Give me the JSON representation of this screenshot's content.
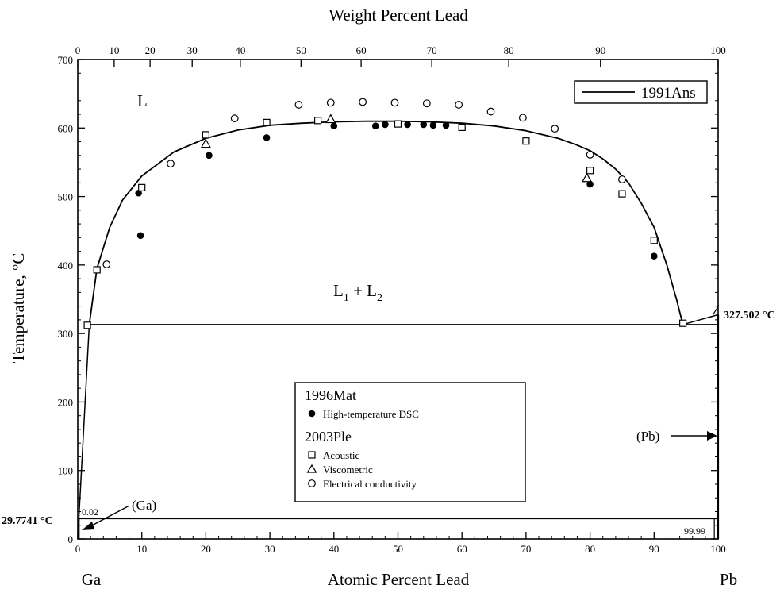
{
  "chart_data": {
    "type": "scatter",
    "title": "",
    "xlabel": "Atomic Percent Lead",
    "x2label": "Weight Percent Lead",
    "ylabel": "Temperature, °C",
    "xlim": [
      0,
      100
    ],
    "ylim": [
      0,
      700
    ],
    "x_ticks": [
      "0",
      "10",
      "20",
      "30",
      "40",
      "50",
      "60",
      "70",
      "80",
      "90",
      "100"
    ],
    "x2_ticks": [
      "0",
      "10",
      "20",
      "30",
      "40",
      "50",
      "60",
      "70",
      "80",
      "90",
      "100"
    ],
    "y_ticks": [
      "0",
      "100",
      "200",
      "300",
      "400",
      "500",
      "600",
      "700"
    ],
    "x2_tick_positions_at": [
      0,
      5.69,
      11.29,
      17.87,
      25.39,
      34.86,
      44.25,
      55.28,
      67.3,
      81.63,
      100
    ],
    "x_ends": {
      "left": "Ga",
      "right": "Pb"
    },
    "grid": false,
    "legend_position": "top-right",
    "annotations": {
      "L": "L",
      "L1L2_main": "L",
      "L1L2_sub1": "1",
      "L1L2_plus": " + L",
      "L1L2_sub2": "2",
      "monotectic_temp": "327.502 °C",
      "eutectic_temp": "29.7741 °C",
      "Ga_phase": "(Ga)",
      "Pb_phase": "(Pb)",
      "Ga_solubility": "0.02",
      "Pb_solubility": "99.99"
    },
    "reference_lines": {
      "monotectic_y": 313,
      "monotectic_x": [
        1.8,
        94.5
      ],
      "eutectic_y": 29.77,
      "pb_melt_y": 327.5
    },
    "series": [
      {
        "name": "1991Ans",
        "kind": "line",
        "x": [
          1.8,
          3,
          5,
          7,
          10,
          15,
          20,
          25,
          30,
          35,
          40,
          45,
          50,
          55,
          60,
          65,
          70,
          75,
          78,
          80,
          82,
          84,
          86,
          88,
          90,
          92,
          93.5,
          94.5
        ],
        "y": [
          313,
          395,
          455,
          495,
          530,
          565,
          585,
          597,
          604,
          607,
          609,
          610,
          610,
          609,
          607,
          603,
          596,
          585,
          575,
          567,
          555,
          540,
          520,
          490,
          455,
          400,
          350,
          313
        ]
      },
      {
        "name": "High-temperature DSC",
        "group": "1996Mat",
        "marker": "filled-circle",
        "x": [
          9.5,
          9.8,
          20.5,
          29.5,
          40,
          46.5,
          48,
          51.5,
          54,
          55.5,
          57.5,
          80,
          90
        ],
        "y": [
          505,
          443,
          560,
          586,
          603,
          603,
          605,
          605,
          605,
          604,
          604,
          518,
          413
        ]
      },
      {
        "name": "Acoustic",
        "group": "2003Ple",
        "marker": "open-square",
        "x": [
          1.5,
          3,
          10,
          20,
          29.5,
          37.5,
          50,
          60,
          70,
          80,
          85,
          90,
          94.5
        ],
        "y": [
          312,
          393,
          513,
          590,
          608,
          611,
          606,
          601,
          581,
          538,
          504,
          436,
          315
        ]
      },
      {
        "name": "Viscometric",
        "group": "2003Ple",
        "marker": "open-triangle",
        "x": [
          20,
          39.5,
          79.5
        ],
        "y": [
          577,
          613,
          527
        ]
      },
      {
        "name": "Electrical conductivity",
        "group": "2003Ple",
        "marker": "open-circle",
        "x": [
          4.5,
          14.5,
          24.5,
          34.5,
          39.5,
          44.5,
          49.5,
          54.5,
          59.5,
          64.5,
          69.5,
          74.5,
          80,
          85
        ],
        "y": [
          401,
          548,
          614,
          634,
          637,
          638,
          637,
          636,
          634,
          624,
          615,
          599,
          561,
          525
        ]
      }
    ],
    "legend_boxes": {
      "top": [
        "1991Ans"
      ],
      "main_groups": [
        {
          "label": "1996Mat",
          "entries": [
            "High-temperature DSC"
          ]
        },
        {
          "label": "2003Ple",
          "entries": [
            "Acoustic",
            "Viscometric",
            "Electrical conductivity"
          ]
        }
      ]
    }
  }
}
